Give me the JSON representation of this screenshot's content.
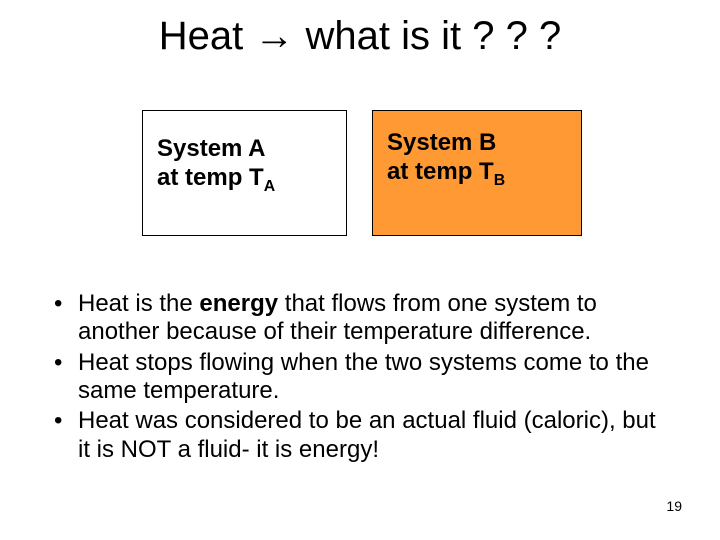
{
  "title": {
    "pre": "Heat ",
    "arrow": "→",
    "post": " what is it ? ? ?",
    "fontsize": 40,
    "color": "#000000"
  },
  "boxes": {
    "a": {
      "line1": "System A",
      "line2_pre": "at temp T",
      "line2_sub": "A",
      "bg": "#ffffff",
      "border": "#000000"
    },
    "b": {
      "line1": "System B",
      "line2_pre": "at temp T",
      "line2_sub": "B",
      "bg": "#ff9933",
      "border": "#000000"
    },
    "fontsize": 24,
    "fontweight": "bold"
  },
  "bullets": {
    "fontsize": 24,
    "items": [
      {
        "pre": "Heat is the ",
        "bold": "energy",
        "post": " that flows from one system to another because of their temperature difference."
      },
      {
        "pre": "",
        "bold": "",
        "post": "Heat stops flowing when the two systems come to the same temperature."
      },
      {
        "pre": "",
        "bold": "",
        "post": "Heat was considered to be an actual fluid (caloric), but it is NOT a fluid- it is energy!"
      }
    ]
  },
  "pagenum": "19",
  "colors": {
    "background": "#ffffff",
    "text": "#000000",
    "box_b_fill": "#ff9933"
  }
}
